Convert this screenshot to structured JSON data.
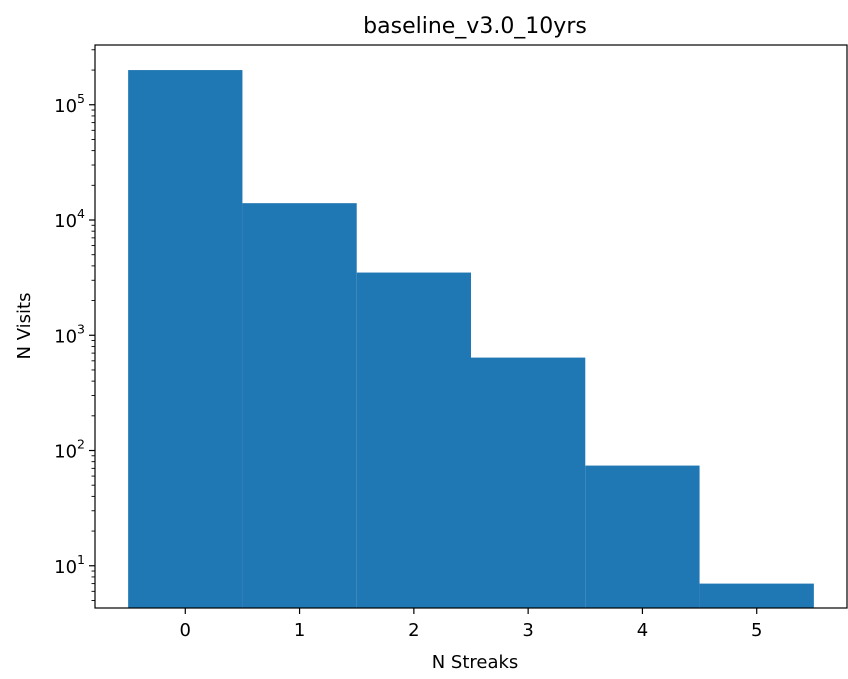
{
  "chart_data": {
    "type": "bar",
    "title": "baseline_v3.0_10yrs",
    "xlabel": "N Streaks",
    "ylabel": "N Visits",
    "yscale": "log",
    "x": [
      0,
      1,
      2,
      3,
      4,
      5
    ],
    "values": [
      200000,
      14000,
      3500,
      640,
      74,
      7
    ],
    "bar_color": "#1f77b4",
    "xticks": [
      "0",
      "1",
      "2",
      "3",
      "4",
      "5"
    ],
    "yticks": [
      {
        "value": 10,
        "base": "10",
        "exp": "1"
      },
      {
        "value": 100,
        "base": "10",
        "exp": "2"
      },
      {
        "value": 1000,
        "base": "10",
        "exp": "3"
      },
      {
        "value": 10000,
        "base": "10",
        "exp": "4"
      },
      {
        "value": 100000,
        "base": "10",
        "exp": "5"
      }
    ],
    "xlim": [
      -0.79,
      5.79
    ],
    "ylim": [
      4.3,
      330000
    ],
    "grid": false
  }
}
